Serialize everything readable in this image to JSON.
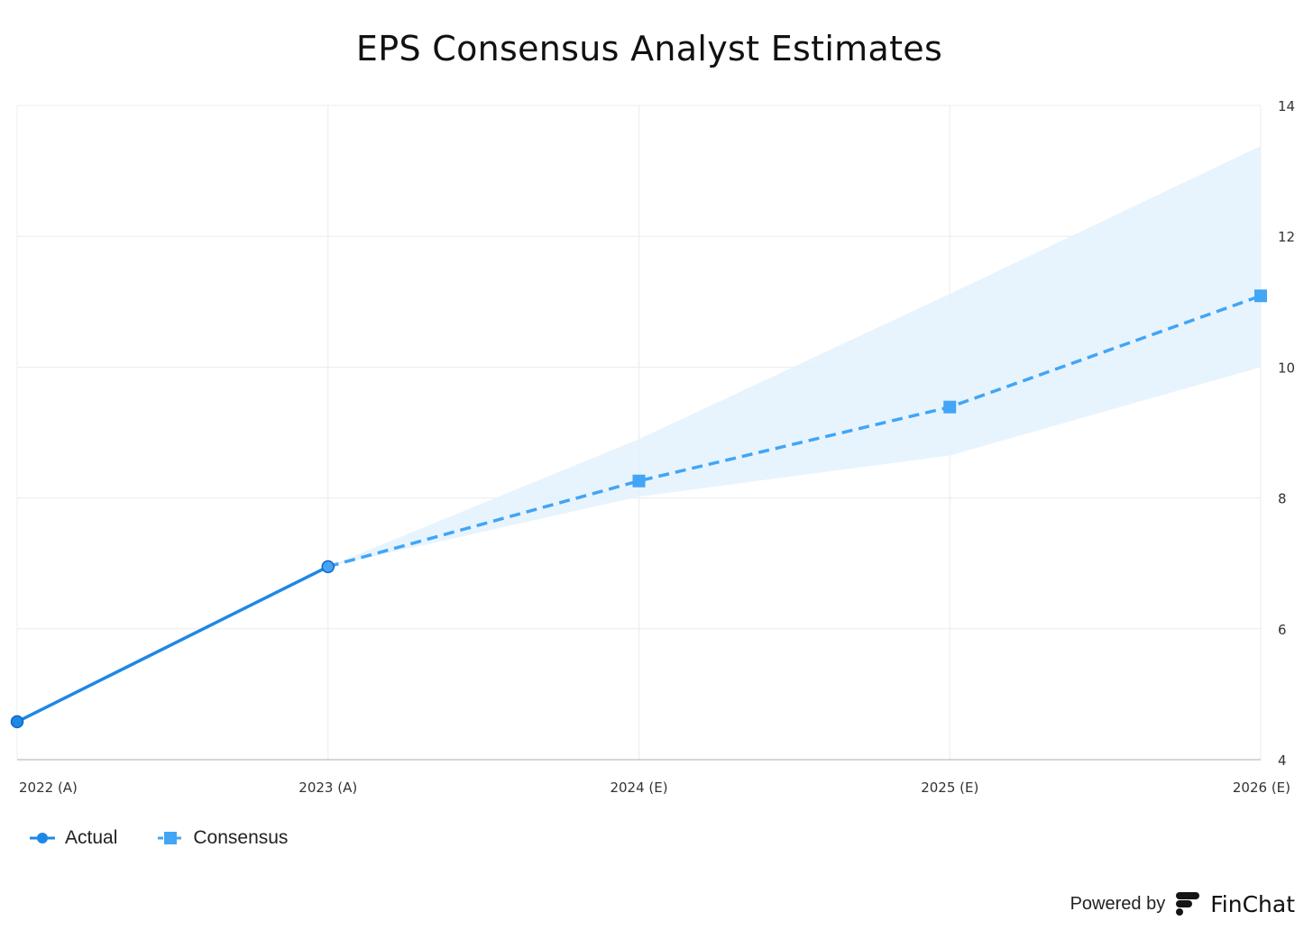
{
  "chart_data": {
    "type": "line",
    "title": "EPS Consensus Analyst Estimates",
    "categories": [
      "2022 (A)",
      "2023 (A)",
      "2024 (E)",
      "2025 (E)",
      "2026 (E)"
    ],
    "ylim": [
      4,
      14
    ],
    "yticks": [
      4,
      6,
      8,
      10,
      12,
      14
    ],
    "y_axis_side": "right",
    "grid": true,
    "legend_position": "bottom-left",
    "series": [
      {
        "name": "Actual",
        "values": [
          4.58,
          6.95,
          null,
          null,
          null
        ],
        "color": "#1e88e5",
        "marker": "circle",
        "line_style": "solid"
      },
      {
        "name": "Consensus",
        "values": [
          null,
          6.95,
          8.26,
          9.39,
          11.09
        ],
        "color": "#42a5f5",
        "marker": "square",
        "line_style": "dashed"
      }
    ],
    "range_band": {
      "low": [
        null,
        6.95,
        8.02,
        8.65,
        10.0
      ],
      "high": [
        null,
        6.95,
        8.9,
        11.12,
        13.38
      ],
      "color": "#e3f2fd"
    }
  },
  "legend": {
    "actual_label": "Actual",
    "consensus_label": "Consensus"
  },
  "footer": {
    "powered_by": "Powered by",
    "brand": "FinChat",
    "logo_icon": "finchat-logo-icon"
  }
}
